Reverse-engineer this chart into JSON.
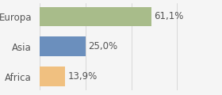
{
  "categories": [
    "Africa",
    "Asia",
    "Europa"
  ],
  "values": [
    13.9,
    25.0,
    61.1
  ],
  "bar_colors": [
    "#f0c080",
    "#6b8fbd",
    "#a8bc8a"
  ],
  "labels": [
    "13,9%",
    "25,0%",
    "61,1%"
  ],
  "background_color": "#f5f5f5",
  "text_color": "#555555",
  "bar_height": 0.65,
  "xlim": [
    0,
    85
  ],
  "label_fontsize": 8.5,
  "tick_fontsize": 8.5,
  "figwidth": 2.8,
  "figheight": 1.2,
  "dpi": 100
}
